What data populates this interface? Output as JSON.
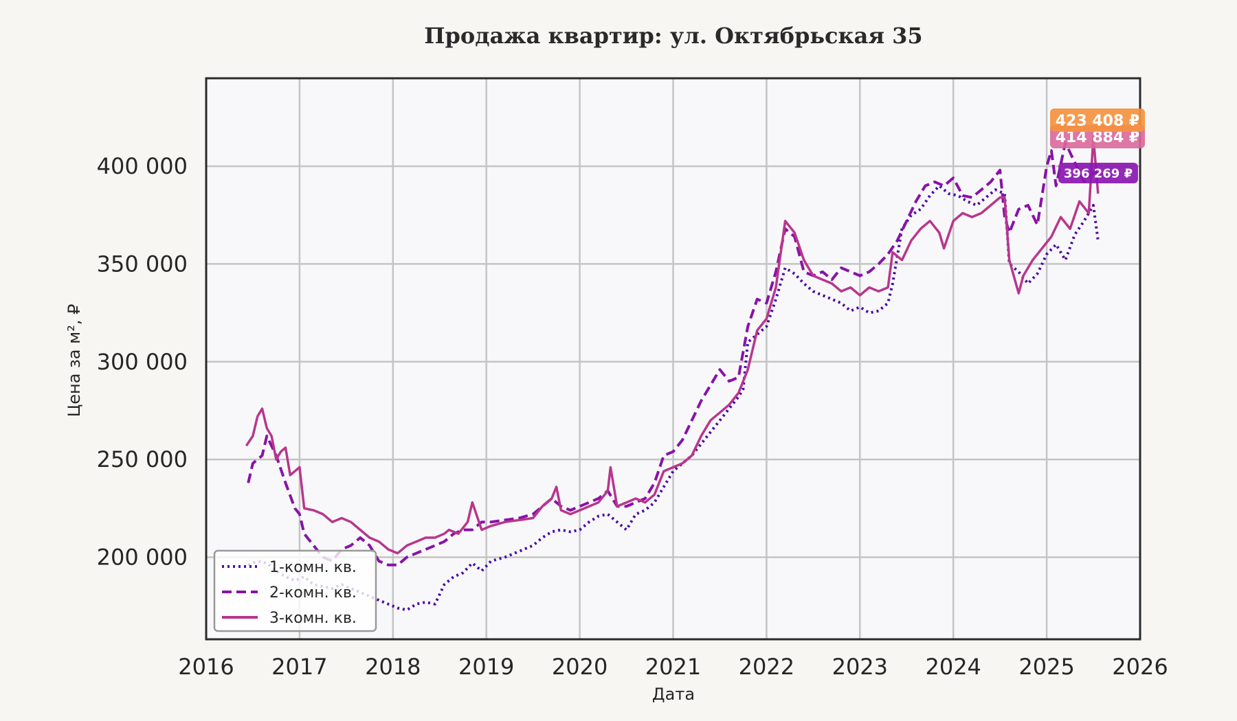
{
  "chart_data": {
    "type": "line",
    "title": "Продажа квартир: ул. Октябрьская 35",
    "xlabel": "Дата",
    "ylabel": "Цена за м², ₽",
    "xlim": [
      2016,
      2026
    ],
    "ylim": [
      158000,
      445000
    ],
    "grid": true,
    "legend_position": "lower left",
    "x_ticks": [
      2016,
      2017,
      2018,
      2019,
      2020,
      2021,
      2022,
      2023,
      2024,
      2025,
      2026
    ],
    "x_tick_labels": [
      "2016",
      "2017",
      "2018",
      "2019",
      "2020",
      "2021",
      "2022",
      "2023",
      "2024",
      "2025",
      "2026"
    ],
    "y_ticks": [
      200000,
      250000,
      300000,
      350000,
      400000
    ],
    "y_tick_labels": [
      "200 000",
      "250 000",
      "300 000",
      "350 000",
      "400 000"
    ],
    "series": [
      {
        "name": "1-комн. кв.",
        "style": "dotted",
        "color": "#4b0aa5",
        "x": [
          2016.45,
          2016.55,
          2016.65,
          2016.75,
          2016.85,
          2016.95,
          2017.05,
          2017.15,
          2017.25,
          2017.35,
          2017.45,
          2017.55,
          2017.65,
          2017.75,
          2017.85,
          2017.95,
          2018.05,
          2018.15,
          2018.25,
          2018.35,
          2018.45,
          2018.55,
          2018.65,
          2018.75,
          2018.85,
          2018.95,
          2019.05,
          2019.2,
          2019.35,
          2019.5,
          2019.6,
          2019.7,
          2019.8,
          2019.9,
          2020.0,
          2020.1,
          2020.2,
          2020.3,
          2020.4,
          2020.5,
          2020.6,
          2020.7,
          2020.8,
          2020.9,
          2021.0,
          2021.1,
          2021.2,
          2021.3,
          2021.4,
          2021.5,
          2021.6,
          2021.7,
          2021.75,
          2021.8,
          2021.9,
          2022.0,
          2022.1,
          2022.2,
          2022.3,
          2022.4,
          2022.5,
          2022.6,
          2022.7,
          2022.8,
          2022.9,
          2023.0,
          2023.1,
          2023.2,
          2023.3,
          2023.35,
          2023.45,
          2023.55,
          2023.65,
          2023.75,
          2023.85,
          2023.95,
          2024.05,
          2024.15,
          2024.25,
          2024.35,
          2024.45,
          2024.55,
          2024.6,
          2024.7,
          2024.8,
          2024.9,
          2025.0,
          2025.1,
          2025.2,
          2025.3,
          2025.4,
          2025.5,
          2025.55
        ],
        "y": [
          196000,
          198000,
          197000,
          193000,
          190000,
          188000,
          190000,
          186000,
          185000,
          184000,
          186000,
          184000,
          182000,
          180000,
          178000,
          176000,
          174000,
          173000,
          176000,
          177000,
          176000,
          186000,
          190000,
          192000,
          197000,
          193000,
          198000,
          200000,
          203000,
          206000,
          210000,
          213000,
          214000,
          213000,
          214000,
          218000,
          221000,
          222000,
          218000,
          214000,
          222000,
          224000,
          228000,
          236000,
          244000,
          248000,
          252000,
          258000,
          264000,
          270000,
          276000,
          282000,
          286000,
          310000,
          314000,
          318000,
          332000,
          348000,
          345000,
          340000,
          336000,
          334000,
          332000,
          330000,
          326000,
          328000,
          325000,
          326000,
          330000,
          340000,
          368000,
          375000,
          378000,
          385000,
          390000,
          386000,
          385000,
          382000,
          380000,
          384000,
          388000,
          386000,
          350000,
          346000,
          340000,
          345000,
          355000,
          360000,
          352000,
          365000,
          372000,
          380000,
          362000
        ]
      },
      {
        "name": "2-комн. кв.",
        "style": "dashed",
        "color": "#8812a8",
        "x": [
          2016.45,
          2016.5,
          2016.6,
          2016.65,
          2016.75,
          2016.85,
          2016.95,
          2017.0,
          2017.05,
          2017.15,
          2017.25,
          2017.35,
          2017.45,
          2017.55,
          2017.65,
          2017.75,
          2017.85,
          2017.95,
          2018.05,
          2018.15,
          2018.25,
          2018.35,
          2018.45,
          2018.55,
          2018.65,
          2018.75,
          2018.85,
          2018.95,
          2019.05,
          2019.2,
          2019.35,
          2019.5,
          2019.6,
          2019.7,
          2019.8,
          2019.9,
          2020.0,
          2020.1,
          2020.2,
          2020.3,
          2020.4,
          2020.5,
          2020.6,
          2020.7,
          2020.8,
          2020.9,
          2021.0,
          2021.1,
          2021.2,
          2021.3,
          2021.4,
          2021.5,
          2021.6,
          2021.7,
          2021.8,
          2021.9,
          2022.0,
          2022.1,
          2022.2,
          2022.3,
          2022.4,
          2022.5,
          2022.6,
          2022.7,
          2022.8,
          2022.9,
          2023.0,
          2023.1,
          2023.2,
          2023.3,
          2023.4,
          2023.5,
          2023.6,
          2023.7,
          2023.8,
          2023.9,
          2024.0,
          2024.1,
          2024.2,
          2024.3,
          2024.4,
          2024.5,
          2024.55,
          2024.6,
          2024.7,
          2024.8,
          2024.9,
          2025.0,
          2025.05,
          2025.1,
          2025.2,
          2025.3,
          2025.4,
          2025.5,
          2025.55
        ],
        "y": [
          238000,
          248000,
          252000,
          262000,
          252000,
          238000,
          225000,
          222000,
          212000,
          206000,
          200000,
          198000,
          204000,
          206000,
          210000,
          206000,
          198000,
          196000,
          196000,
          200000,
          202000,
          204000,
          206000,
          208000,
          212000,
          214000,
          214000,
          218000,
          218000,
          219000,
          220000,
          222000,
          226000,
          230000,
          226000,
          224000,
          226000,
          228000,
          230000,
          234000,
          226000,
          226000,
          228000,
          230000,
          238000,
          252000,
          254000,
          260000,
          270000,
          280000,
          288000,
          296000,
          290000,
          292000,
          318000,
          332000,
          330000,
          346000,
          368000,
          364000,
          346000,
          344000,
          346000,
          342000,
          348000,
          346000,
          344000,
          346000,
          350000,
          355000,
          362000,
          372000,
          382000,
          390000,
          392000,
          390000,
          394000,
          385000,
          384000,
          388000,
          392000,
          398000,
          374000,
          366000,
          378000,
          380000,
          370000,
          400000,
          408000,
          390000,
          412000,
          402000,
          392000,
          396269,
          400000
        ]
      },
      {
        "name": "3-комн. кв.",
        "style": "solid",
        "color": "#b8368c",
        "x": [
          2016.43,
          2016.5,
          2016.55,
          2016.6,
          2016.65,
          2016.7,
          2016.75,
          2016.8,
          2016.85,
          2016.9,
          2016.95,
          2017.0,
          2017.05,
          2017.15,
          2017.25,
          2017.35,
          2017.45,
          2017.55,
          2017.65,
          2017.75,
          2017.85,
          2017.95,
          2018.05,
          2018.15,
          2018.25,
          2018.35,
          2018.45,
          2018.55,
          2018.6,
          2018.7,
          2018.8,
          2018.85,
          2018.95,
          2019.05,
          2019.2,
          2019.35,
          2019.5,
          2019.6,
          2019.7,
          2019.75,
          2019.8,
          2019.9,
          2020.0,
          2020.1,
          2020.2,
          2020.3,
          2020.33,
          2020.4,
          2020.5,
          2020.6,
          2020.7,
          2020.8,
          2020.9,
          2021.0,
          2021.1,
          2021.2,
          2021.3,
          2021.4,
          2021.5,
          2021.6,
          2021.7,
          2021.8,
          2021.9,
          2022.0,
          2022.1,
          2022.2,
          2022.3,
          2022.4,
          2022.5,
          2022.6,
          2022.7,
          2022.8,
          2022.9,
          2023.0,
          2023.1,
          2023.2,
          2023.3,
          2023.35,
          2023.45,
          2023.55,
          2023.65,
          2023.75,
          2023.85,
          2023.9,
          2024.0,
          2024.1,
          2024.2,
          2024.3,
          2024.4,
          2024.5,
          2024.55,
          2024.6,
          2024.7,
          2024.75,
          2024.85,
          2024.95,
          2025.05,
          2025.15,
          2025.25,
          2025.35,
          2025.45,
          2025.5,
          2025.55
        ],
        "y": [
          257000,
          262000,
          272000,
          276000,
          266000,
          262000,
          250000,
          254000,
          256000,
          242000,
          244000,
          246000,
          225000,
          224000,
          222000,
          218000,
          220000,
          218000,
          214000,
          210000,
          208000,
          204000,
          202000,
          206000,
          208000,
          210000,
          210000,
          212000,
          214000,
          212000,
          218000,
          228000,
          214000,
          216000,
          218000,
          219000,
          220000,
          226000,
          230000,
          236000,
          224000,
          222000,
          224000,
          226000,
          228000,
          234000,
          246000,
          226000,
          228000,
          230000,
          228000,
          232000,
          244000,
          246000,
          248000,
          252000,
          262000,
          270000,
          274000,
          278000,
          284000,
          296000,
          316000,
          322000,
          338000,
          372000,
          366000,
          352000,
          344000,
          342000,
          340000,
          336000,
          338000,
          334000,
          338000,
          336000,
          338000,
          356000,
          352000,
          362000,
          368000,
          372000,
          366000,
          358000,
          372000,
          376000,
          374000,
          376000,
          380000,
          384000,
          384000,
          352000,
          335000,
          344000,
          352000,
          358000,
          364000,
          374000,
          368000,
          382000,
          376000,
          414884,
          386000
        ]
      }
    ],
    "annotations": [
      {
        "label": "423 408 ₽",
        "color": "#f5913f",
        "series": "max"
      },
      {
        "label": "414 884 ₽",
        "color": "#d9689a",
        "series": "3-комн. кв."
      },
      {
        "label": "396 269 ₽",
        "color": "#8a17b0",
        "series": "2-комн. кв."
      }
    ]
  },
  "page": {
    "background": "#f7f6f2",
    "plot_background": "#f8f8fa"
  }
}
